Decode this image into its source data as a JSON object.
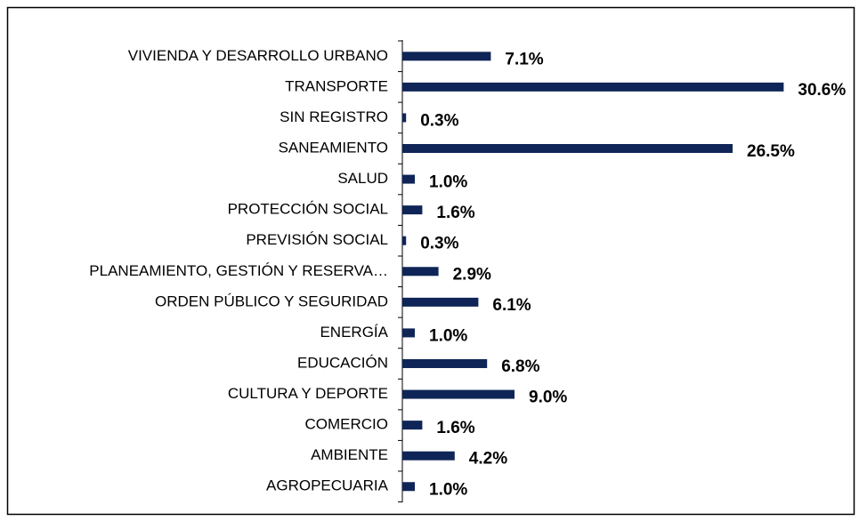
{
  "chart_data": {
    "type": "bar",
    "orientation": "horizontal",
    "color": "#0f2557",
    "categories": [
      "VIVIENDA Y DESARROLLO URBANO",
      "TRANSPORTE",
      "SIN REGISTRO",
      "SANEAMIENTO",
      "SALUD",
      "PROTECCIÓN SOCIAL",
      "PREVISIÓN SOCIAL",
      "PLANEAMIENTO, GESTIÓN Y RESERVA…",
      "ORDEN PÚBLICO Y SEGURIDAD",
      "ENERGÍA",
      "EDUCACIÓN",
      "CULTURA Y DEPORTE",
      "COMERCIO",
      "AMBIENTE",
      "AGROPECUARIA"
    ],
    "values": [
      7.1,
      30.6,
      0.3,
      26.5,
      1.0,
      1.6,
      0.3,
      2.9,
      6.1,
      1.0,
      6.8,
      9.0,
      1.6,
      4.2,
      1.0
    ],
    "value_labels": [
      "7.1%",
      "30.6%",
      "0.3%",
      "26.5%",
      "1.0%",
      "1.6%",
      "0.3%",
      "2.9%",
      "6.1%",
      "1.0%",
      "6.8%",
      "9.0%",
      "1.6%",
      "4.2%",
      "1.0%"
    ]
  }
}
